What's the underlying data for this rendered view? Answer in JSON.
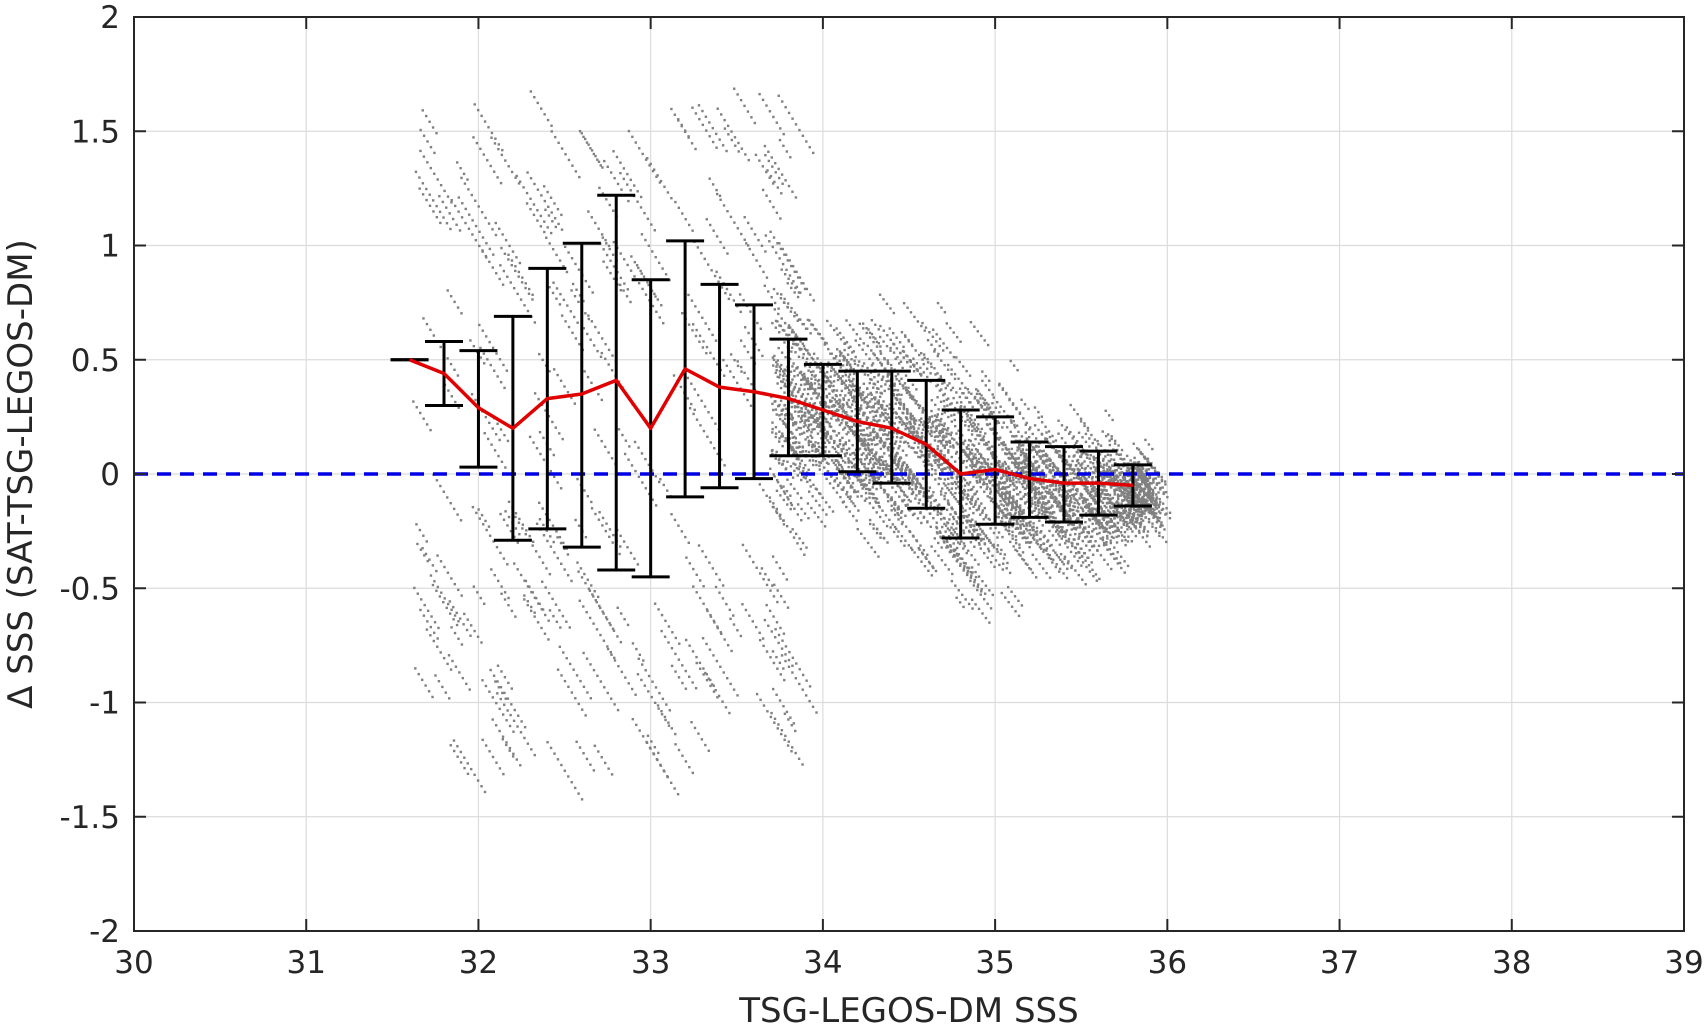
{
  "chart_data": {
    "type": "scatter",
    "xlabel": "TSG-LEGOS-DM SSS",
    "ylabel": "Δ SSS (SAT-TSG-LEGOS-DM)",
    "xlim": [
      30,
      39
    ],
    "ylim": [
      -2,
      2
    ],
    "x_ticks": [
      30,
      31,
      32,
      33,
      34,
      35,
      36,
      37,
      38,
      39
    ],
    "y_ticks": [
      2,
      1.5,
      1,
      0.5,
      0,
      -0.5,
      -1,
      -1.5,
      -2
    ],
    "x_tick_labels": [
      "30",
      "31",
      "32",
      "33",
      "34",
      "35",
      "36",
      "37",
      "38",
      "39"
    ],
    "y_tick_labels": [
      "2",
      "1.5",
      "1",
      "0.5",
      "0",
      "-0.5",
      "-1",
      "-1.5",
      "-2"
    ],
    "grid": true,
    "series": [
      {
        "kind": "binned_mean_with_errorbars",
        "color": "#e00000",
        "errorbar_color": "#000000",
        "x": [
          31.6,
          31.8,
          32.0,
          32.2,
          32.4,
          32.6,
          32.8,
          33.0,
          33.2,
          33.4,
          33.6,
          33.8,
          34.0,
          34.2,
          34.4,
          34.6,
          34.8,
          35.0,
          35.2,
          35.4,
          35.6,
          35.8
        ],
        "mean": [
          0.5,
          0.44,
          0.29,
          0.2,
          0.33,
          0.35,
          0.41,
          0.2,
          0.46,
          0.38,
          0.36,
          0.33,
          0.28,
          0.23,
          0.2,
          0.13,
          0.0,
          0.02,
          -0.02,
          -0.04,
          -0.04,
          -0.05
        ],
        "upper": [
          0.5,
          0.58,
          0.54,
          0.69,
          0.9,
          1.01,
          1.22,
          0.85,
          1.02,
          0.83,
          0.74,
          0.59,
          0.48,
          0.45,
          0.45,
          0.41,
          0.28,
          0.25,
          0.14,
          0.12,
          0.1,
          0.04
        ],
        "lower": [
          0.5,
          0.3,
          0.03,
          -0.29,
          -0.24,
          -0.32,
          -0.42,
          -0.45,
          -0.1,
          -0.06,
          -0.02,
          0.08,
          0.08,
          0.01,
          -0.04,
          -0.15,
          -0.28,
          -0.22,
          -0.19,
          -0.21,
          -0.18,
          -0.14
        ]
      },
      {
        "kind": "reference_line",
        "y": 0,
        "style": "dashed",
        "color": "#0000e6"
      },
      {
        "kind": "scatter_cloud",
        "color": "#808080"
      }
    ]
  }
}
